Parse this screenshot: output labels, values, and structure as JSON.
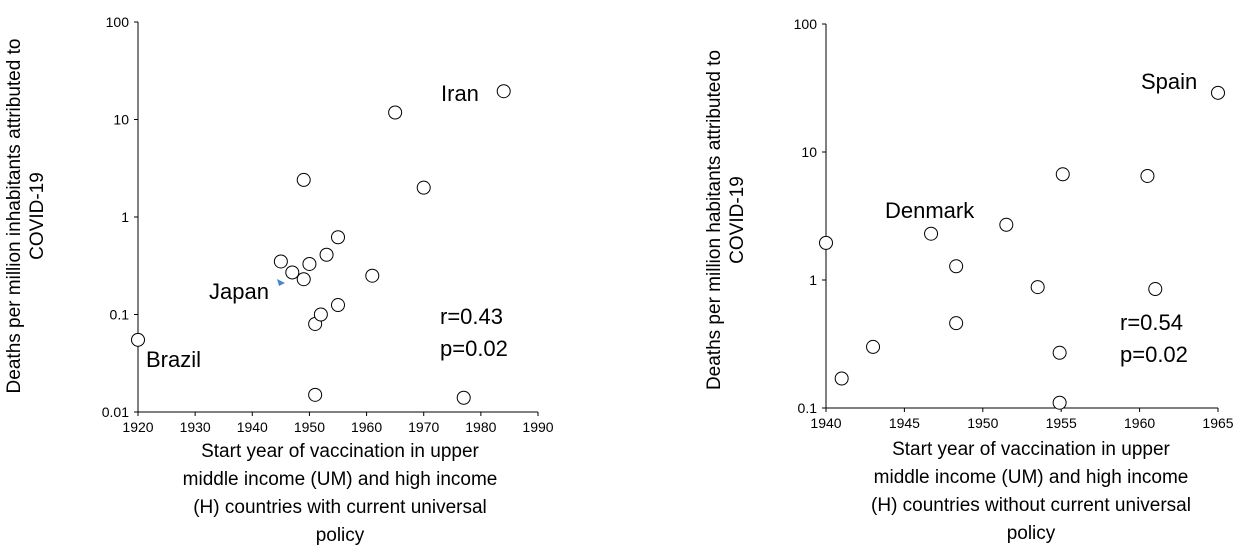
{
  "chart_data": [
    {
      "type": "scatter",
      "ylabel": [
        "Deaths per million inhabitants attributed to",
        "COVID-19"
      ],
      "xlabel": [
        "Start year of vaccination in upper",
        "middle income (UM)  and high income",
        "(H) countries with current universal",
        "policy"
      ],
      "xlim": [
        1920,
        1990
      ],
      "ylim": [
        0.01,
        100
      ],
      "yscale": "log",
      "x_ticks": [
        "1920",
        "1930",
        "1940",
        "1950",
        "1960",
        "1970",
        "1980",
        "1990"
      ],
      "y_ticks": [
        "0.01",
        "0.1",
        "1",
        "10",
        "100"
      ],
      "stats": [
        "r=0.43",
        "p=0.02"
      ],
      "annotations": [
        "Iran",
        "Japan",
        "Brazil"
      ],
      "marker_color": "#ffffff",
      "highlight_color": "#4a86c8",
      "points": [
        {
          "x": 1920,
          "y": 0.055
        },
        {
          "x": 1945,
          "y": 0.35
        },
        {
          "x": 1947,
          "y": 0.27
        },
        {
          "x": 1949,
          "y": 2.4
        },
        {
          "x": 1949,
          "y": 0.23
        },
        {
          "x": 1950,
          "y": 0.33
        },
        {
          "x": 1951,
          "y": 0.08
        },
        {
          "x": 1951,
          "y": 0.015
        },
        {
          "x": 1952,
          "y": 0.1
        },
        {
          "x": 1953,
          "y": 0.41
        },
        {
          "x": 1955,
          "y": 0.62
        },
        {
          "x": 1955,
          "y": 0.125
        },
        {
          "x": 1961,
          "y": 0.25
        },
        {
          "x": 1965,
          "y": 11.8
        },
        {
          "x": 1970,
          "y": 2.0
        },
        {
          "x": 1977,
          "y": 0.014
        },
        {
          "x": 1984,
          "y": 19.5
        }
      ]
    },
    {
      "type": "scatter",
      "ylabel": [
        "Deaths per million habitants attributed to",
        "COVID-19"
      ],
      "xlabel": [
        "Start year of vaccination in upper",
        "middle income (UM)  and high income",
        "(H) countries without current universal",
        "policy"
      ],
      "xlim": [
        1940,
        1965
      ],
      "ylim": [
        0.1,
        100
      ],
      "yscale": "log",
      "x_ticks": [
        "1940",
        "1945",
        "1950",
        "1955",
        "1960",
        "1965"
      ],
      "y_ticks": [
        "0.1",
        "1",
        "10",
        "100"
      ],
      "stats": [
        "r=0.54",
        "p=0.02"
      ],
      "annotations": [
        "Spain",
        "Denmark"
      ],
      "marker_color": "#ffffff",
      "points": [
        {
          "x": 1940,
          "y": 1.95
        },
        {
          "x": 1941,
          "y": 0.17
        },
        {
          "x": 1943,
          "y": 0.3
        },
        {
          "x": 1946.7,
          "y": 2.3
        },
        {
          "x": 1948.3,
          "y": 1.28
        },
        {
          "x": 1948.3,
          "y": 0.46
        },
        {
          "x": 1955.1,
          "y": 6.7
        },
        {
          "x": 1951.5,
          "y": 2.7
        },
        {
          "x": 1953.5,
          "y": 0.88
        },
        {
          "x": 1954.9,
          "y": 0.27
        },
        {
          "x": 1954.9,
          "y": 0.11
        },
        {
          "x": 1960.5,
          "y": 6.5
        },
        {
          "x": 1961,
          "y": 0.85
        },
        {
          "x": 1965,
          "y": 29
        }
      ]
    }
  ]
}
